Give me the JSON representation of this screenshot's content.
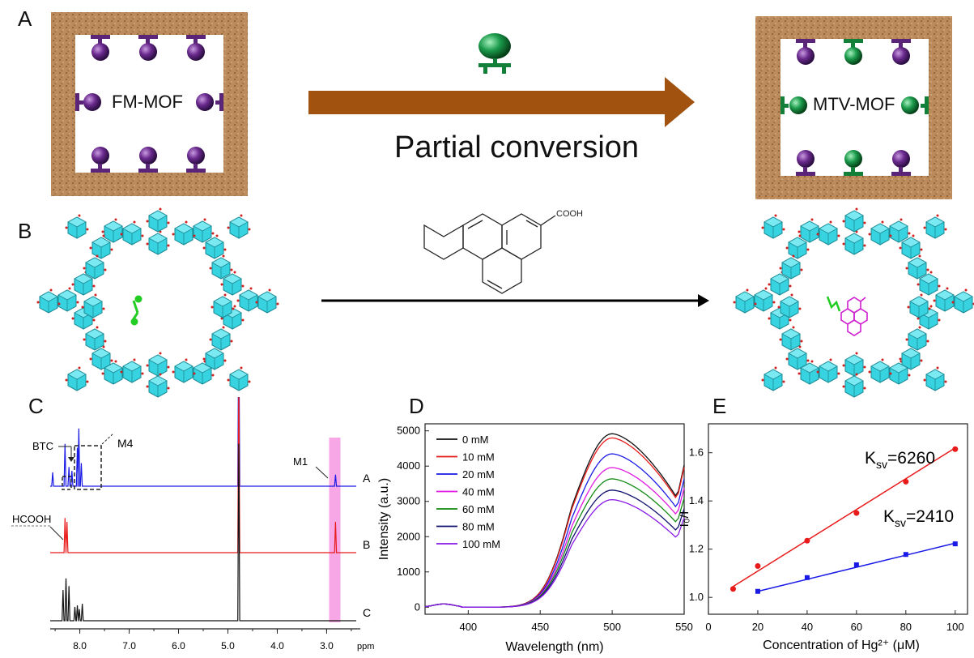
{
  "panel_labels": {
    "A": "A",
    "B": "B",
    "C": "C",
    "D": "D",
    "E": "E"
  },
  "panel_a": {
    "left_label": "FM-MOF",
    "right_label": "MTV-MOF",
    "arrow_caption": "Partial conversion",
    "colors": {
      "frame": "#b9895a",
      "arrow": "#a0520e",
      "ligand_purple": "#6a2a8e",
      "ligand_green": "#1a9a4a"
    }
  },
  "panel_b": {
    "reagent_label": "COOH",
    "colors": {
      "cluster": "#37d3e0",
      "substituent_left": "#22cc22",
      "guest_right": "#d020d0"
    }
  },
  "chart_data": [
    {
      "id": "C",
      "type": "line",
      "xlabel": "ppm",
      "x_ticks": [
        "8.0",
        "7.0",
        "6.0",
        "5.0",
        "4.0",
        "3.0"
      ],
      "xlim": [
        8.6,
        2.4
      ],
      "annotations": [
        "BTC",
        "M4",
        "M1",
        "HCOOH"
      ],
      "series": [
        {
          "label": "A",
          "color": "#1a1ae6",
          "peaks": [
            [
              8.55,
              0.18
            ],
            [
              8.3,
              0.55
            ],
            [
              8.22,
              0.25
            ],
            [
              8.16,
              0.2
            ],
            [
              8.05,
              0.5
            ],
            [
              8.02,
              0.75
            ],
            [
              7.97,
              0.3
            ],
            [
              4.78,
              1.0
            ],
            [
              2.82,
              0.15
            ]
          ]
        },
        {
          "label": "B",
          "color": "#e81a1a",
          "peaks": [
            [
              8.3,
              0.45
            ],
            [
              8.26,
              0.4
            ],
            [
              4.78,
              1.0
            ],
            [
              2.82,
              0.4
            ]
          ]
        },
        {
          "label": "C",
          "color": "#111111",
          "peaks": [
            [
              8.34,
              0.4
            ],
            [
              8.28,
              0.55
            ],
            [
              8.22,
              0.45
            ],
            [
              8.1,
              0.18
            ],
            [
              8.05,
              0.2
            ],
            [
              8.01,
              0.15
            ],
            [
              7.95,
              0.22
            ],
            [
              4.78,
              1.0
            ]
          ]
        }
      ],
      "highlight_band": [
        2.95,
        2.72
      ]
    },
    {
      "id": "D",
      "type": "line",
      "xlabel": "Wavelength (nm)",
      "ylabel": "Intensity (a.u.)",
      "xlim": [
        370,
        550
      ],
      "ylim": [
        -200,
        5200
      ],
      "x_ticks": [
        400,
        450,
        500,
        550
      ],
      "y_ticks": [
        0,
        1000,
        2000,
        3000,
        4000,
        5000
      ],
      "legend_position": "top-left",
      "series": [
        {
          "name": "0 mM",
          "color": "#111111",
          "peak": 4920,
          "end": 3100
        },
        {
          "name": "10 mM",
          "color": "#e81a1a",
          "peak": 4800,
          "end": 3050
        },
        {
          "name": "20 mM",
          "color": "#1a1ae6",
          "peak": 4350,
          "end": 2800
        },
        {
          "name": "40 mM",
          "color": "#e01ae0",
          "peak": 3960,
          "end": 2600
        },
        {
          "name": "60 mM",
          "color": "#128a12",
          "peak": 3640,
          "end": 2380
        },
        {
          "name": "80 mM",
          "color": "#10106e",
          "peak": 3320,
          "end": 2150
        },
        {
          "name": "100 mM",
          "color": "#8a1ae6",
          "peak": 3050,
          "end": 1950
        }
      ]
    },
    {
      "id": "E",
      "type": "scatter",
      "xlabel": "Concentration of Hg²⁺ (μM)",
      "ylabel": "I₀/I",
      "xlim": [
        0,
        105
      ],
      "ylim": [
        0.93,
        1.72
      ],
      "x_ticks": [
        0,
        20,
        40,
        60,
        80,
        100
      ],
      "y_ticks": [
        1.0,
        1.2,
        1.4,
        1.6
      ],
      "series": [
        {
          "name": "Ksv=6260",
          "color": "#e81a1a",
          "marker": "circle",
          "x": [
            10,
            20,
            40,
            60,
            80,
            100
          ],
          "y": [
            1.035,
            1.13,
            1.235,
            1.35,
            1.48,
            1.615
          ],
          "fit": [
            [
              10,
              1.045
            ],
            [
              100,
              1.62
            ]
          ]
        },
        {
          "name": "Ksv=2410",
          "color": "#1a1ae6",
          "marker": "square",
          "x": [
            20,
            40,
            60,
            80,
            100
          ],
          "y": [
            1.025,
            1.082,
            1.135,
            1.178,
            1.222
          ],
          "fit": [
            [
              20,
              1.025
            ],
            [
              100,
              1.225
            ]
          ]
        }
      ],
      "annotations": {
        "k1_main": "K",
        "k1_sub": "sv",
        "k1_val": "=6260",
        "k2_main": "K",
        "k2_sub": "sv",
        "k2_val": "=2410"
      }
    }
  ]
}
